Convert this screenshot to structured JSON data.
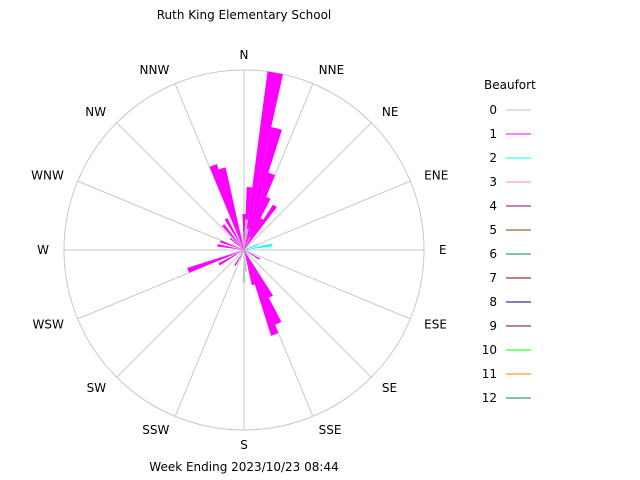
{
  "chart_data": {
    "type": "polar-bar",
    "title": "Ruth King Elementary School",
    "footer": "Week Ending 2023/10/23 08:44",
    "directions": [
      "N",
      "NNE",
      "NE",
      "ENE",
      "E",
      "ESE",
      "SE",
      "SSE",
      "S",
      "SSW",
      "SW",
      "WSW",
      "W",
      "WNW",
      "NW",
      "NNW"
    ],
    "radial_max": 100,
    "bin_width_deg": 5,
    "legend_title": "Beaufort",
    "legend": [
      {
        "label": "0",
        "color": "#c0c0c0"
      },
      {
        "label": "1",
        "color": "#ff00ff"
      },
      {
        "label": "2",
        "color": "#00ffff"
      },
      {
        "label": "3",
        "color": "#ff80c0"
      },
      {
        "label": "4",
        "color": "#800080"
      },
      {
        "label": "5",
        "color": "#804000"
      },
      {
        "label": "6",
        "color": "#008080"
      },
      {
        "label": "7",
        "color": "#800000"
      },
      {
        "label": "8",
        "color": "#000080"
      },
      {
        "label": "9",
        "color": "#800040"
      },
      {
        "label": "10",
        "color": "#00ff00"
      },
      {
        "label": "11",
        "color": "#ff8000"
      },
      {
        "label": "12",
        "color": "#008080"
      }
    ],
    "series": [
      {
        "name": "0",
        "color": "#c0c0c0",
        "bins": [
          {
            "dir": 5,
            "value": 17
          },
          {
            "dir": 10,
            "value": 12
          },
          {
            "dir": 25,
            "value": 8
          },
          {
            "dir": 350,
            "value": 10
          },
          {
            "dir": 180,
            "value": 18
          },
          {
            "dir": 175,
            "value": 12
          },
          {
            "dir": 200,
            "value": 6
          },
          {
            "dir": 240,
            "value": 5
          }
        ]
      },
      {
        "name": "1",
        "color": "#ff00ff",
        "bins": [
          {
            "dir": 10,
            "value": 100
          },
          {
            "dir": 15,
            "value": 70
          },
          {
            "dir": 20,
            "value": 45
          },
          {
            "dir": 25,
            "value": 32
          },
          {
            "dir": 35,
            "value": 30
          },
          {
            "dir": 5,
            "value": 35
          },
          {
            "dir": 30,
            "value": 20
          },
          {
            "dir": 0,
            "value": 20
          },
          {
            "dir": 345,
            "value": 47
          },
          {
            "dir": 340,
            "value": 50
          },
          {
            "dir": 330,
            "value": 20
          },
          {
            "dir": 320,
            "value": 18
          },
          {
            "dir": 310,
            "value": 10
          },
          {
            "dir": 290,
            "value": 14
          },
          {
            "dir": 280,
            "value": 15
          },
          {
            "dir": 250,
            "value": 33
          },
          {
            "dir": 240,
            "value": 16
          },
          {
            "dir": 210,
            "value": 10
          },
          {
            "dir": 160,
            "value": 50
          },
          {
            "dir": 155,
            "value": 45
          },
          {
            "dir": 150,
            "value": 30
          },
          {
            "dir": 120,
            "value": 10
          },
          {
            "dir": 165,
            "value": 20
          }
        ]
      },
      {
        "name": "2",
        "color": "#00ffff",
        "bins": [
          {
            "dir": 80,
            "value": 16
          },
          {
            "dir": 70,
            "value": 8
          }
        ]
      }
    ]
  }
}
